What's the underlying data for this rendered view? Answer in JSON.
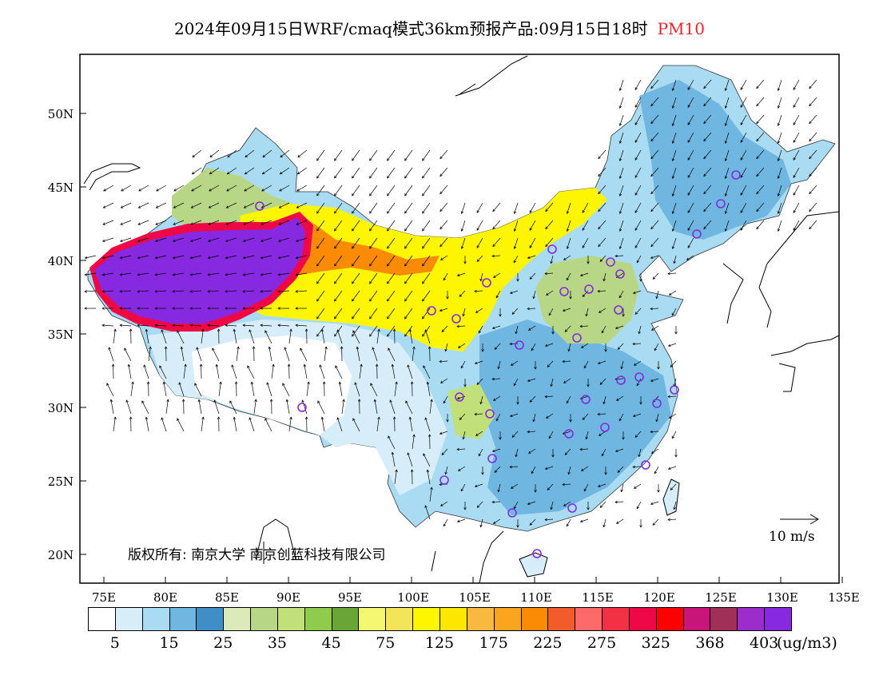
{
  "title": {
    "main": "2024年09月15日WRF/cmaq模式36km预报产品:09月15日18时",
    "variable": "PM10"
  },
  "axes": {
    "lat_labels": [
      "50N",
      "45N",
      "40N",
      "35N",
      "30N",
      "25N",
      "20N"
    ],
    "lon_labels": [
      "75E",
      "80E",
      "85E",
      "90E",
      "95E",
      "100E",
      "105E",
      "110E",
      "115E",
      "120E",
      "125E",
      "130E",
      "135E"
    ]
  },
  "copyright": "版权所有: 南京大学  南京创蓝科技有限公司",
  "vector_reference": "10 m/s",
  "colorbar": {
    "colors": [
      "#ffffff",
      "#d7eefa",
      "#a9dcf3",
      "#6fb6e0",
      "#3f8ec6",
      "#dbeab9",
      "#b7d686",
      "#c2e07a",
      "#8fcb4c",
      "#6aa637",
      "#f3f870",
      "#f4e45a",
      "#fef501",
      "#fde700",
      "#f9b840",
      "#fba51f",
      "#fb8a04",
      "#f25b2a",
      "#fe6a6a",
      "#f23147",
      "#ef0846",
      "#ff0000",
      "#c8157a",
      "#a03058",
      "#9b2dcb",
      "#8629e0"
    ],
    "labels": [
      "5",
      "15",
      "25",
      "35",
      "45",
      "75",
      "125",
      "175",
      "225",
      "275",
      "325",
      "368",
      "403"
    ],
    "unit": "(ug/m3)"
  },
  "icons": [
    "station-circle-icon",
    "wind-arrow-icon"
  ]
}
